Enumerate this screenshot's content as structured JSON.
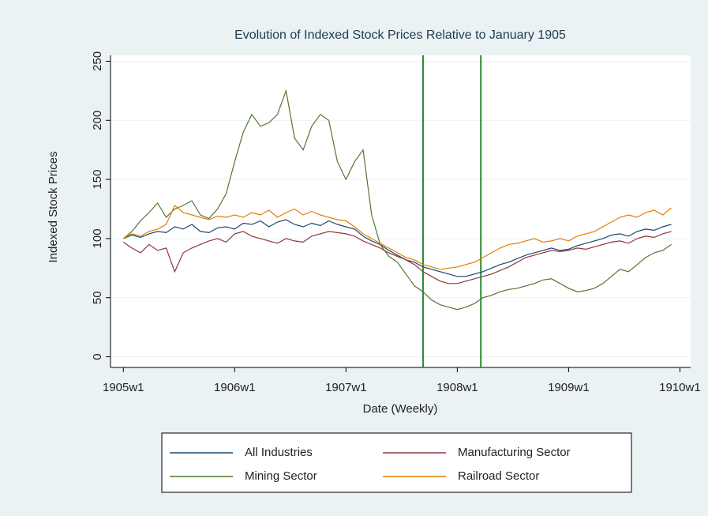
{
  "chart_data": {
    "type": "line",
    "title": "Evolution of Indexed Stock Prices Relative to January 1905",
    "x_label": "Date (Weekly)",
    "y_label": "Indexed Stock Prices",
    "x": [
      0,
      4,
      8,
      12,
      16,
      20,
      24,
      28,
      32,
      36,
      40,
      44,
      48,
      52,
      56,
      60,
      64,
      68,
      72,
      76,
      80,
      84,
      88,
      92,
      96,
      100,
      104,
      108,
      112,
      116,
      120,
      124,
      128,
      132,
      136,
      140,
      144,
      148,
      152,
      156,
      160,
      164,
      168,
      172,
      176,
      180,
      184,
      188,
      192,
      196,
      200,
      204,
      208,
      212,
      216,
      220,
      224,
      228,
      232,
      236,
      240,
      244,
      248,
      252,
      256
    ],
    "xlim": [
      -6,
      265
    ],
    "xticks": [
      {
        "value": 0,
        "label": "1905w1"
      },
      {
        "value": 52,
        "label": "1906w1"
      },
      {
        "value": 104,
        "label": "1907w1"
      },
      {
        "value": 156,
        "label": "1908w1"
      },
      {
        "value": 208,
        "label": "1909w1"
      },
      {
        "value": 260,
        "label": "1910w1"
      }
    ],
    "ylim": [
      -9,
      255
    ],
    "yticks": [
      0,
      50,
      100,
      150,
      200,
      250
    ],
    "grid": true,
    "legend": "bottom",
    "vlines": [
      140,
      167
    ],
    "vline_color": "#2e8b2e",
    "series": [
      {
        "name": "All Industries",
        "color": "#1a476f",
        "values": [
          100,
          103,
          101,
          104,
          106,
          105,
          110,
          108,
          112,
          106,
          105,
          109,
          110,
          108,
          113,
          112,
          115,
          110,
          114,
          116,
          112,
          110,
          113,
          111,
          115,
          112,
          110,
          108,
          102,
          98,
          95,
          90,
          86,
          82,
          80,
          76,
          74,
          72,
          70,
          68,
          68,
          70,
          72,
          75,
          78,
          80,
          83,
          86,
          88,
          90,
          92,
          90,
          91,
          94,
          96,
          98,
          100,
          103,
          104,
          102,
          106,
          108,
          107,
          110,
          112
        ]
      },
      {
        "name": "Manufacturing Sector",
        "color": "#90353b",
        "values": [
          97,
          92,
          88,
          95,
          90,
          92,
          72,
          88,
          92,
          95,
          98,
          100,
          97,
          104,
          106,
          102,
          100,
          98,
          96,
          100,
          98,
          97,
          102,
          104,
          106,
          105,
          104,
          102,
          98,
          95,
          92,
          88,
          85,
          82,
          78,
          72,
          68,
          64,
          62,
          62,
          64,
          66,
          68,
          70,
          73,
          76,
          80,
          84,
          86,
          88,
          90,
          89,
          90,
          92,
          91,
          93,
          95,
          97,
          98,
          96,
          100,
          102,
          101,
          104,
          106
        ]
      },
      {
        "name": "Mining Sector",
        "color": "#55752f",
        "values": [
          100,
          106,
          115,
          122,
          130,
          118,
          125,
          128,
          132,
          120,
          117,
          125,
          138,
          165,
          190,
          205,
          195,
          198,
          205,
          225,
          185,
          175,
          195,
          205,
          200,
          165,
          150,
          165,
          175,
          120,
          95,
          85,
          80,
          70,
          60,
          55,
          48,
          44,
          42,
          40,
          42,
          45,
          50,
          52,
          55,
          57,
          58,
          60,
          62,
          65,
          66,
          62,
          58,
          55,
          56,
          58,
          62,
          68,
          74,
          72,
          78,
          84,
          88,
          90,
          95
        ]
      },
      {
        "name": "Railroad Sector",
        "color": "#e37e00",
        "values": [
          100,
          104,
          102,
          106,
          108,
          112,
          128,
          122,
          120,
          118,
          116,
          119,
          118,
          120,
          118,
          122,
          120,
          124,
          118,
          122,
          125,
          120,
          123,
          120,
          118,
          116,
          115,
          110,
          104,
          100,
          96,
          92,
          88,
          84,
          82,
          78,
          76,
          74,
          75,
          76,
          78,
          80,
          84,
          88,
          92,
          95,
          96,
          98,
          100,
          97,
          98,
          100,
          98,
          102,
          104,
          106,
          110,
          114,
          118,
          120,
          118,
          122,
          124,
          120,
          126
        ]
      }
    ]
  }
}
